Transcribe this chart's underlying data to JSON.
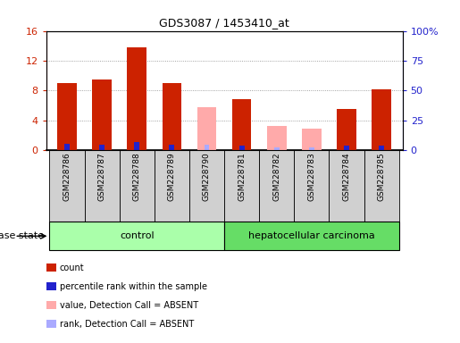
{
  "title": "GDS3087 / 1453410_at",
  "samples": [
    "GSM228786",
    "GSM228787",
    "GSM228788",
    "GSM228789",
    "GSM228790",
    "GSM228781",
    "GSM228782",
    "GSM228783",
    "GSM228784",
    "GSM228785"
  ],
  "n_control": 5,
  "n_cancer": 5,
  "count_values": [
    9.0,
    9.5,
    13.8,
    9.0,
    null,
    6.8,
    null,
    null,
    5.5,
    8.2
  ],
  "rank_values": [
    5.0,
    4.5,
    6.5,
    4.7,
    null,
    4.2,
    null,
    null,
    3.8,
    3.8
  ],
  "absent_count_values": [
    null,
    null,
    null,
    null,
    5.8,
    null,
    3.2,
    2.9,
    null,
    null
  ],
  "absent_rank_values": [
    null,
    null,
    null,
    null,
    4.5,
    null,
    2.5,
    2.7,
    null,
    null
  ],
  "ylim_left": [
    0,
    16
  ],
  "ylim_right": [
    0,
    100
  ],
  "yticks_left": [
    0,
    4,
    8,
    12,
    16
  ],
  "yticks_right": [
    0,
    25,
    50,
    75,
    100
  ],
  "ytick_labels_left": [
    "0",
    "4",
    "8",
    "12",
    "16"
  ],
  "ytick_labels_right": [
    "0",
    "25",
    "50",
    "75",
    "100%"
  ],
  "color_count": "#cc2200",
  "color_rank": "#2222cc",
  "color_absent_count": "#ffaaaa",
  "color_absent_rank": "#aaaaff",
  "color_control_bg": "#aaffaa",
  "color_cancer_bg": "#66dd66",
  "color_sample_box": "#d0d0d0",
  "bar_width": 0.55,
  "rank_bar_width": 0.15,
  "legend_items": [
    "count",
    "percentile rank within the sample",
    "value, Detection Call = ABSENT",
    "rank, Detection Call = ABSENT"
  ],
  "legend_colors": [
    "#cc2200",
    "#2222cc",
    "#ffaaaa",
    "#aaaaff"
  ],
  "disease_state_label": "disease state",
  "control_label": "control",
  "cancer_label": "hepatocellular carcinoma",
  "grid_color": "#888888",
  "plot_bg": "#ffffff"
}
